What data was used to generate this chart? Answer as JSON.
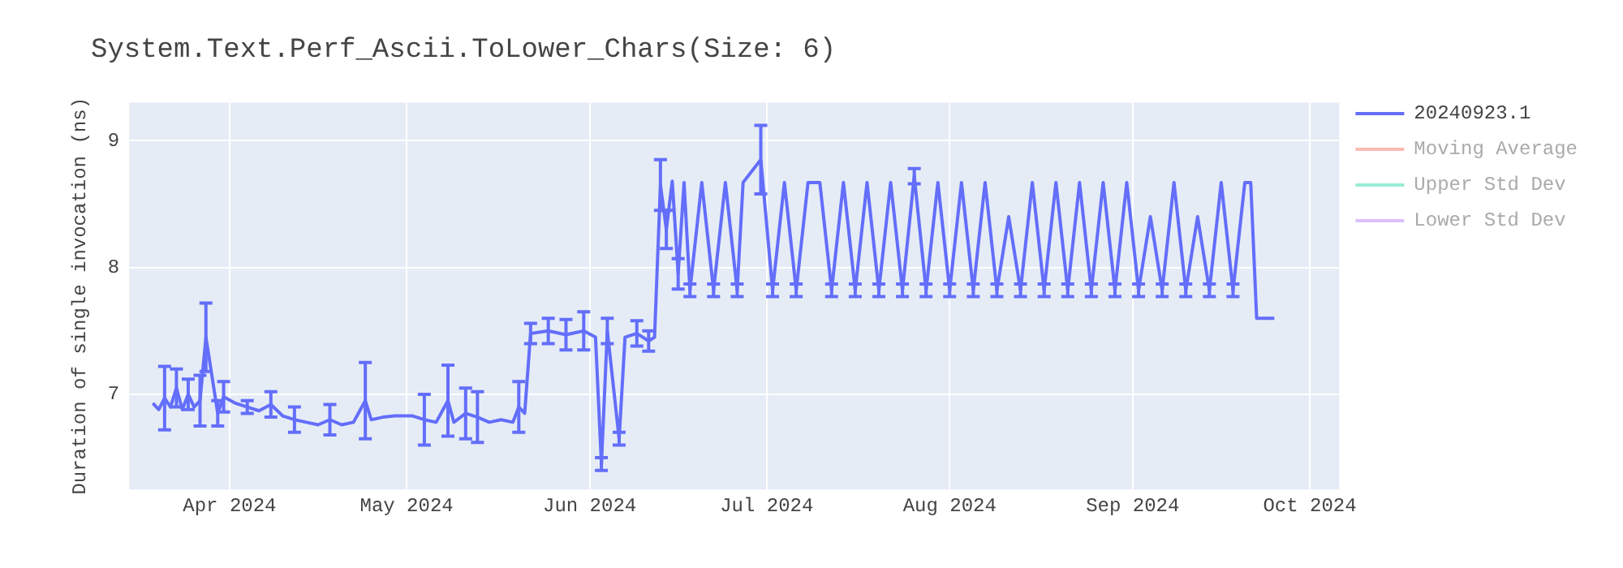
{
  "chart_data": {
    "type": "line",
    "title": "System.Text.Perf_Ascii.ToLower_Chars(Size: 6)",
    "ylabel": "Duration of single invocation (ns)",
    "xlim": [
      "2024-03-15",
      "2024-10-06"
    ],
    "xticks": [
      {
        "value": "2024-04-01",
        "label": "Apr 2024"
      },
      {
        "value": "2024-05-01",
        "label": "May 2024"
      },
      {
        "value": "2024-06-01",
        "label": "Jun 2024"
      },
      {
        "value": "2024-07-01",
        "label": "Jul 2024"
      },
      {
        "value": "2024-08-01",
        "label": "Aug 2024"
      },
      {
        "value": "2024-09-01",
        "label": "Sep 2024"
      },
      {
        "value": "2024-10-01",
        "label": "Oct 2024"
      }
    ],
    "ylim": [
      6.25,
      9.3
    ],
    "yticks": [
      7,
      8,
      9
    ],
    "grid": true,
    "legend": "top right",
    "marker": "none",
    "line_style": "solid",
    "x": [
      "2024-03-19",
      "2024-03-20",
      "2024-03-21",
      "2024-03-22",
      "2024-03-23",
      "2024-03-24",
      "2024-03-25",
      "2024-03-26",
      "2024-03-27",
      "2024-03-28",
      "2024-03-30",
      "2024-03-31",
      "2024-04-02",
      "2024-04-04",
      "2024-04-06",
      "2024-04-08",
      "2024-04-10",
      "2024-04-12",
      "2024-04-14",
      "2024-04-16",
      "2024-04-18",
      "2024-04-20",
      "2024-04-22",
      "2024-04-24",
      "2024-04-25",
      "2024-04-27",
      "2024-04-29",
      "2024-05-02",
      "2024-05-04",
      "2024-05-06",
      "2024-05-08",
      "2024-05-09",
      "2024-05-11",
      "2024-05-13",
      "2024-05-15",
      "2024-05-17",
      "2024-05-19",
      "2024-05-20",
      "2024-05-21",
      "2024-05-22",
      "2024-05-25",
      "2024-05-28",
      "2024-05-31",
      "2024-06-02",
      "2024-06-03",
      "2024-06-04",
      "2024-06-06",
      "2024-06-07",
      "2024-06-09",
      "2024-06-11",
      "2024-06-12",
      "2024-06-13",
      "2024-06-14",
      "2024-06-15",
      "2024-06-16",
      "2024-06-17",
      "2024-06-18",
      "2024-06-20",
      "2024-06-22",
      "2024-06-24",
      "2024-06-26",
      "2024-06-27",
      "2024-06-30",
      "2024-07-02",
      "2024-07-04",
      "2024-07-06",
      "2024-07-08",
      "2024-07-10",
      "2024-07-12",
      "2024-07-14",
      "2024-07-16",
      "2024-07-18",
      "2024-07-20",
      "2024-07-22",
      "2024-07-24",
      "2024-07-26",
      "2024-07-28",
      "2024-07-30",
      "2024-08-01",
      "2024-08-03",
      "2024-08-05",
      "2024-08-07",
      "2024-08-09",
      "2024-08-11",
      "2024-08-13",
      "2024-08-15",
      "2024-08-17",
      "2024-08-19",
      "2024-08-21",
      "2024-08-23",
      "2024-08-25",
      "2024-08-27",
      "2024-08-29",
      "2024-08-31",
      "2024-09-02",
      "2024-09-04",
      "2024-09-06",
      "2024-09-08",
      "2024-09-10",
      "2024-09-12",
      "2024-09-14",
      "2024-09-16",
      "2024-09-18",
      "2024-09-20",
      "2024-09-21",
      "2024-09-22",
      "2024-09-25"
    ],
    "series": [
      {
        "name": "20240923.1",
        "color": "#636efa",
        "values": [
          6.93,
          6.88,
          6.97,
          6.9,
          7.05,
          6.88,
          7.0,
          6.9,
          6.95,
          7.45,
          6.85,
          6.98,
          6.93,
          6.9,
          6.87,
          6.92,
          6.83,
          6.8,
          6.78,
          6.76,
          6.8,
          6.76,
          6.78,
          6.95,
          6.8,
          6.82,
          6.83,
          6.83,
          6.8,
          6.78,
          6.95,
          6.78,
          6.85,
          6.82,
          6.78,
          6.8,
          6.78,
          6.9,
          6.85,
          7.48,
          7.5,
          7.47,
          7.5,
          7.45,
          6.45,
          7.5,
          6.65,
          7.45,
          7.48,
          7.42,
          7.45,
          8.65,
          8.3,
          8.68,
          7.95,
          8.67,
          7.82,
          8.67,
          7.82,
          8.67,
          7.82,
          8.67,
          8.85,
          7.82,
          8.67,
          7.82,
          8.67,
          8.67,
          7.82,
          8.67,
          7.82,
          8.67,
          7.82,
          8.67,
          7.82,
          8.72,
          7.82,
          8.67,
          7.82,
          8.67,
          7.82,
          8.67,
          7.82,
          8.4,
          7.82,
          8.67,
          7.82,
          8.67,
          7.82,
          8.67,
          7.82,
          8.67,
          7.82,
          8.67,
          7.82,
          8.4,
          7.82,
          8.67,
          7.82,
          8.4,
          7.82,
          8.67,
          7.82,
          8.67,
          8.67,
          7.6,
          7.6
        ],
        "errors": [
          null,
          null,
          0.25,
          null,
          0.15,
          null,
          0.12,
          null,
          0.2,
          0.27,
          0.1,
          0.12,
          null,
          0.05,
          null,
          0.1,
          null,
          0.1,
          null,
          null,
          0.12,
          null,
          null,
          0.3,
          null,
          null,
          null,
          null,
          0.2,
          null,
          0.28,
          null,
          0.2,
          0.2,
          null,
          null,
          null,
          0.2,
          null,
          0.08,
          0.1,
          0.12,
          0.15,
          null,
          0.05,
          0.1,
          0.05,
          null,
          0.1,
          0.08,
          null,
          0.2,
          0.15,
          null,
          0.12,
          null,
          0.05,
          null,
          0.05,
          null,
          0.05,
          null,
          0.27,
          0.05,
          null,
          0.05,
          null,
          null,
          0.05,
          null,
          0.05,
          null,
          0.05,
          null,
          0.05,
          0.06,
          0.05,
          null,
          0.05,
          null,
          0.05,
          null,
          0.05,
          null,
          0.05,
          null,
          0.05,
          null,
          0.05,
          null,
          0.05,
          null,
          0.05,
          null,
          0.05,
          null,
          0.05,
          null,
          0.05,
          null,
          0.05,
          null,
          0.05,
          null,
          null,
          null,
          null
        ]
      },
      {
        "name": "Moving Average",
        "color": "#ef553b",
        "values": [
          null,
          null,
          null,
          null,
          null,
          null,
          null,
          null,
          null,
          null,
          null,
          null,
          null,
          null,
          null,
          null,
          null,
          null,
          null,
          null,
          null,
          null,
          null,
          null,
          null,
          null,
          null,
          null,
          null,
          null,
          null,
          null,
          null,
          null,
          null,
          null,
          null,
          null,
          null,
          null,
          null,
          null,
          null,
          null,
          null,
          null,
          null,
          null,
          null,
          null,
          null,
          null,
          null,
          null,
          null,
          null,
          null,
          null,
          null,
          null,
          null,
          null,
          null,
          null,
          null,
          null,
          null,
          null,
          null,
          null,
          null,
          null,
          null,
          null,
          null,
          null,
          null,
          null,
          null,
          null,
          null,
          null,
          null,
          null,
          null,
          null,
          null,
          null,
          null,
          null,
          null,
          null,
          null,
          null,
          null,
          null,
          null,
          null,
          null,
          null,
          null,
          null,
          null,
          null,
          null,
          null,
          null
        ]
      },
      {
        "name": "Upper Std Dev",
        "color": "#00cc96",
        "values": [
          null,
          null,
          null,
          null,
          null,
          null,
          null,
          null,
          null,
          null,
          null,
          null,
          null,
          null,
          null,
          null,
          null,
          null,
          null,
          null,
          null,
          null,
          null,
          null,
          null,
          null,
          null,
          null,
          null,
          null,
          null,
          null,
          null,
          null,
          null,
          null,
          null,
          null,
          null,
          null,
          null,
          null,
          null,
          null,
          null,
          null,
          null,
          null,
          null,
          null,
          null,
          null,
          null,
          null,
          null,
          null,
          null,
          null,
          null,
          null,
          null,
          null,
          null,
          null,
          null,
          null,
          null,
          null,
          null,
          null,
          null,
          null,
          null,
          null,
          null,
          null,
          null,
          null,
          null,
          null,
          null,
          null,
          null,
          null,
          null,
          null,
          null,
          null,
          null,
          null,
          null,
          null,
          null,
          null,
          null,
          null,
          null,
          null,
          null,
          null,
          null,
          null,
          null,
          null,
          null,
          null,
          null
        ]
      },
      {
        "name": "Lower Std Dev",
        "color": "#ab63fa",
        "values": [
          null,
          null,
          null,
          null,
          null,
          null,
          null,
          null,
          null,
          null,
          null,
          null,
          null,
          null,
          null,
          null,
          null,
          null,
          null,
          null,
          null,
          null,
          null,
          null,
          null,
          null,
          null,
          null,
          null,
          null,
          null,
          null,
          null,
          null,
          null,
          null,
          null,
          null,
          null,
          null,
          null,
          null,
          null,
          null,
          null,
          null,
          null,
          null,
          null,
          null,
          null,
          null,
          null,
          null,
          null,
          null,
          null,
          null,
          null,
          null,
          null,
          null,
          null,
          null,
          null,
          null,
          null,
          null,
          null,
          null,
          null,
          null,
          null,
          null,
          null,
          null,
          null,
          null,
          null,
          null,
          null,
          null,
          null,
          null,
          null,
          null,
          null,
          null,
          null,
          null,
          null,
          null,
          null,
          null,
          null,
          null,
          null,
          null,
          null,
          null,
          null,
          null,
          null,
          null,
          null,
          null,
          null
        ]
      }
    ]
  }
}
